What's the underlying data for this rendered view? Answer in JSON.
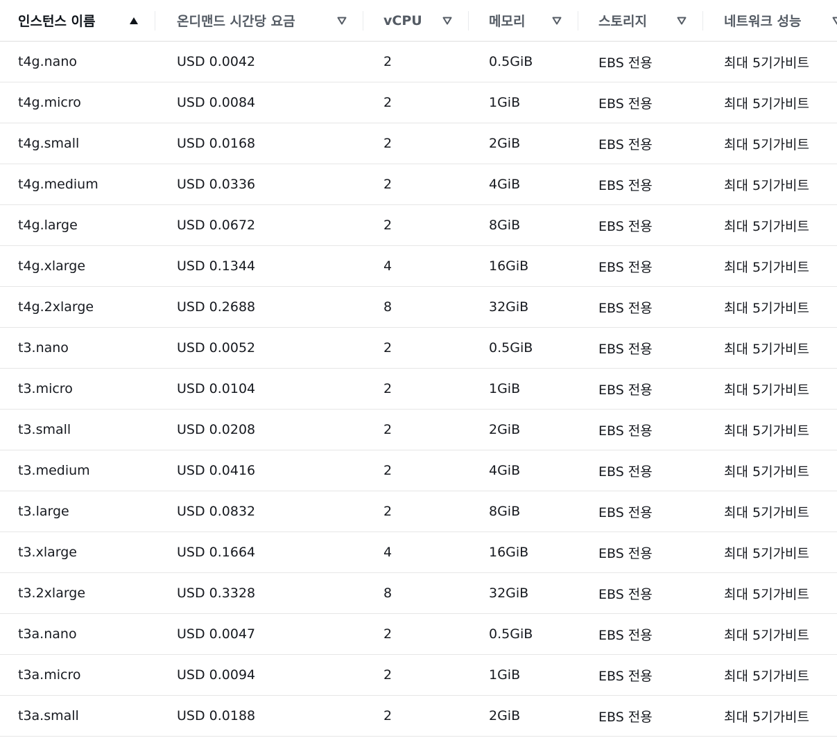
{
  "table": {
    "columns": [
      {
        "label": "인스턴스 이름",
        "sort": "ascending"
      },
      {
        "label": "온디맨드 시간당 요금",
        "sort": "none"
      },
      {
        "label": "vCPU",
        "sort": "none"
      },
      {
        "label": "메모리",
        "sort": "none"
      },
      {
        "label": "스토리지",
        "sort": "none"
      },
      {
        "label": "네트워크 성능",
        "sort": "none"
      }
    ],
    "sort_icons": {
      "ascending": "caret-up-filled-icon",
      "none": "caret-down-outline-icon"
    },
    "rows": [
      [
        "t4g.nano",
        "USD 0.0042",
        "2",
        "0.5GiB",
        "EBS 전용",
        "최대 5기가비트"
      ],
      [
        "t4g.micro",
        "USD 0.0084",
        "2",
        "1GiB",
        "EBS 전용",
        "최대 5기가비트"
      ],
      [
        "t4g.small",
        "USD 0.0168",
        "2",
        "2GiB",
        "EBS 전용",
        "최대 5기가비트"
      ],
      [
        "t4g.medium",
        "USD 0.0336",
        "2",
        "4GiB",
        "EBS 전용",
        "최대 5기가비트"
      ],
      [
        "t4g.large",
        "USD 0.0672",
        "2",
        "8GiB",
        "EBS 전용",
        "최대 5기가비트"
      ],
      [
        "t4g.xlarge",
        "USD 0.1344",
        "4",
        "16GiB",
        "EBS 전용",
        "최대 5기가비트"
      ],
      [
        "t4g.2xlarge",
        "USD 0.2688",
        "8",
        "32GiB",
        "EBS 전용",
        "최대 5기가비트"
      ],
      [
        "t3.nano",
        "USD 0.0052",
        "2",
        "0.5GiB",
        "EBS 전용",
        "최대 5기가비트"
      ],
      [
        "t3.micro",
        "USD 0.0104",
        "2",
        "1GiB",
        "EBS 전용",
        "최대 5기가비트"
      ],
      [
        "t3.small",
        "USD 0.0208",
        "2",
        "2GiB",
        "EBS 전용",
        "최대 5기가비트"
      ],
      [
        "t3.medium",
        "USD 0.0416",
        "2",
        "4GiB",
        "EBS 전용",
        "최대 5기가비트"
      ],
      [
        "t3.large",
        "USD 0.0832",
        "2",
        "8GiB",
        "EBS 전용",
        "최대 5기가비트"
      ],
      [
        "t3.xlarge",
        "USD 0.1664",
        "4",
        "16GiB",
        "EBS 전용",
        "최대 5기가비트"
      ],
      [
        "t3.2xlarge",
        "USD 0.3328",
        "8",
        "32GiB",
        "EBS 전용",
        "최대 5기가비트"
      ],
      [
        "t3a.nano",
        "USD 0.0047",
        "2",
        "0.5GiB",
        "EBS 전용",
        "최대 5기가비트"
      ],
      [
        "t3a.micro",
        "USD 0.0094",
        "2",
        "1GiB",
        "EBS 전용",
        "최대 5기가비트"
      ],
      [
        "t3a.small",
        "USD 0.0188",
        "2",
        "2GiB",
        "EBS 전용",
        "최대 5기가비트"
      ]
    ]
  },
  "colors": {
    "header_text": "#545b64",
    "sorted_header_text": "#0f141a",
    "cell_text": "#16191f",
    "row_border": "#e6e6e6",
    "sort_icon": "#545b64"
  }
}
